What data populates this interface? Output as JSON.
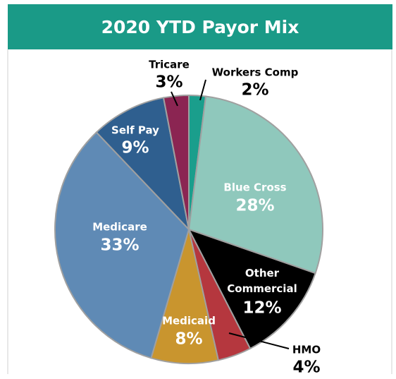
{
  "chart_data": {
    "type": "pie",
    "title": "2020 YTD Payor Mix",
    "categories": [
      "Workers Comp",
      "Blue Cross",
      "Other Commercial",
      "HMO",
      "Medicaid",
      "Medicare",
      "Self Pay",
      "Tricare"
    ],
    "values": [
      2,
      28,
      12,
      4,
      8,
      33,
      9,
      3
    ],
    "value_labels": [
      "2%",
      "28%",
      "12%",
      "4%",
      "8%",
      "33%",
      "9%",
      "3%"
    ],
    "colors": [
      "#1a9e8c",
      "#8fc8bc",
      "#000000",
      "#b5373e",
      "#c9952e",
      "#5f8ab5",
      "#2f5f8f",
      "#8b2552"
    ]
  }
}
